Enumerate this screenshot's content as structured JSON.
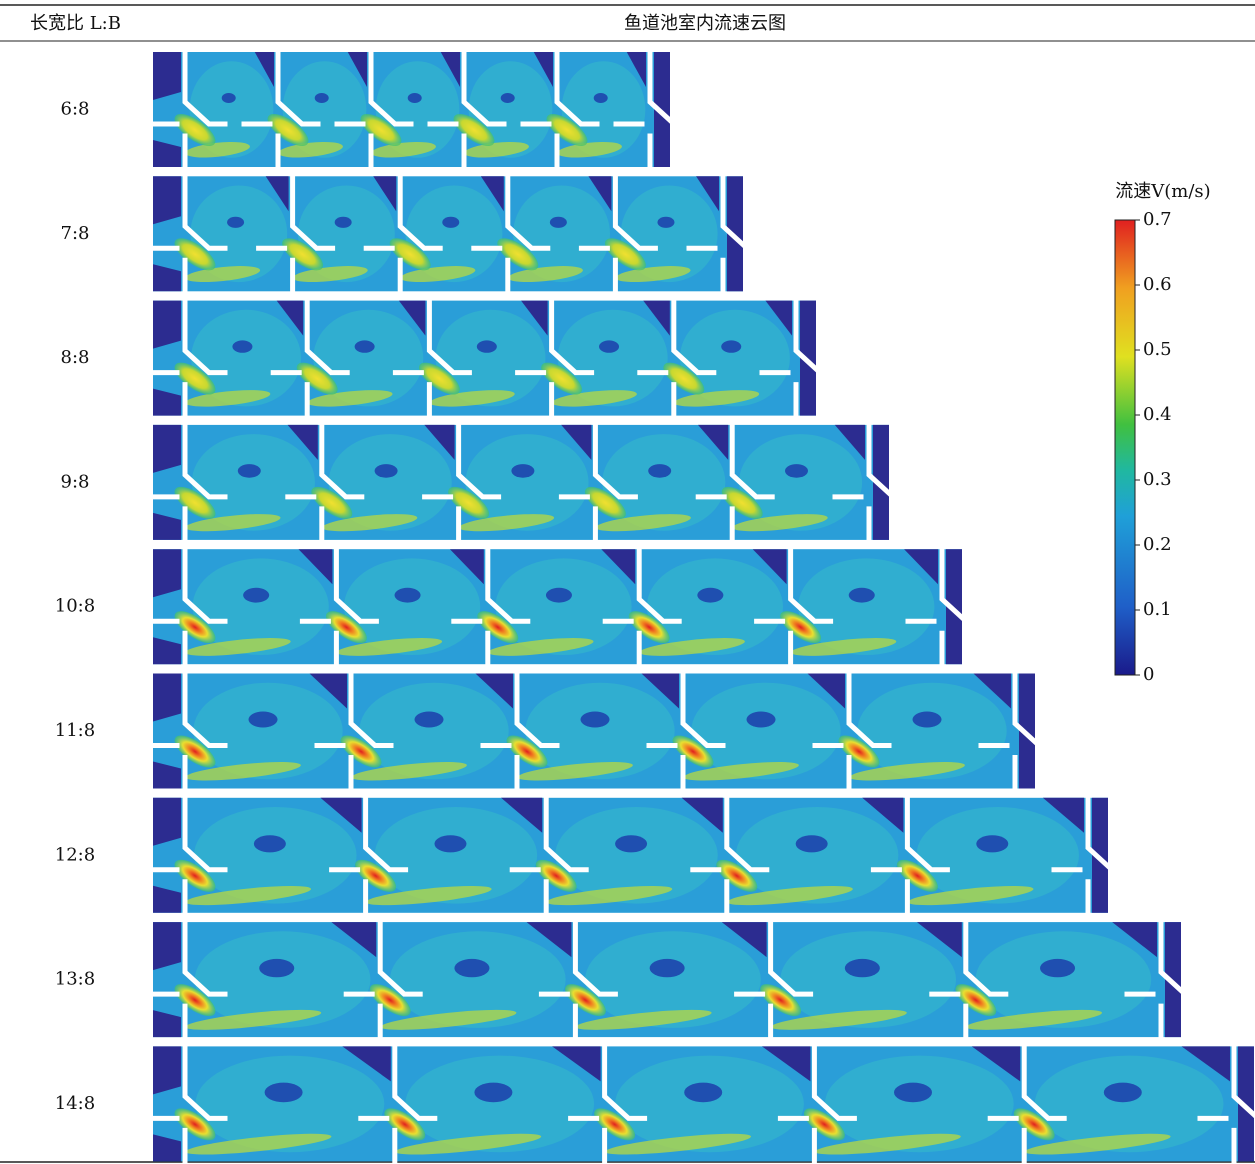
{
  "header": {
    "ratio_label": "长宽比 L:B",
    "title": "鱼道池室内流速云图"
  },
  "rows": [
    "6:8",
    "7:8",
    "8:8",
    "9:8",
    "10:8",
    "11:8",
    "12:8",
    "13:8",
    "14:8"
  ],
  "colorbar": {
    "title": "流速V(m/s)",
    "ticks": [
      0,
      0.1,
      0.2,
      0.3,
      0.4,
      0.5,
      0.6,
      0.7
    ]
  }
}
